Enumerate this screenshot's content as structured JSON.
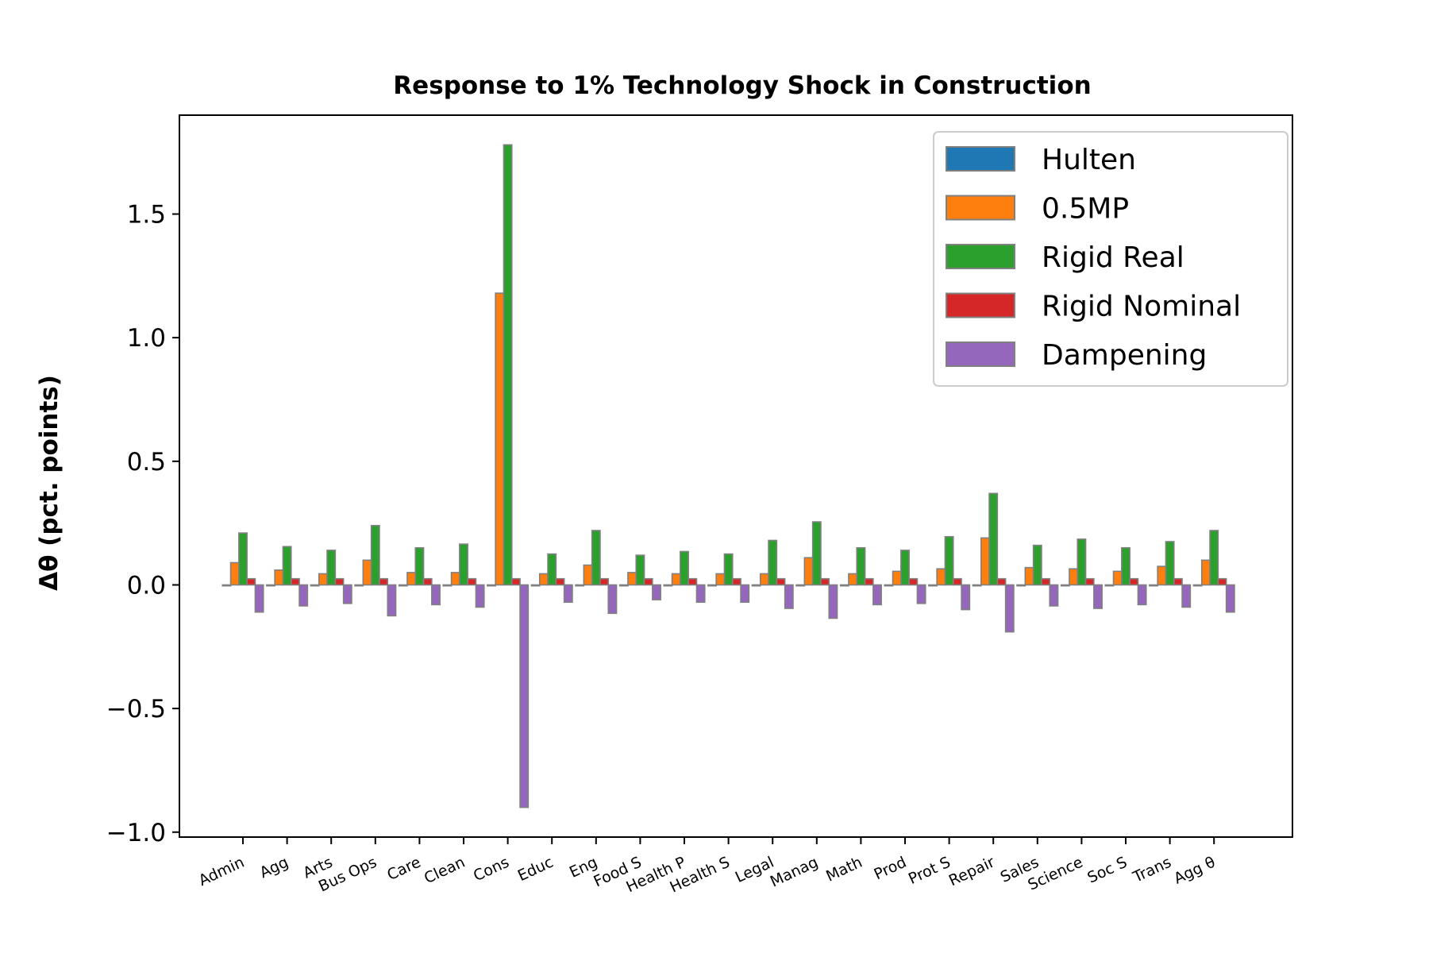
{
  "chart_data": {
    "type": "bar",
    "title": "Response to 1% Technology Shock in Construction",
    "xlabel": "",
    "ylabel": "Δθ  (pct. points)",
    "ylim": [
      -1.02,
      1.9
    ],
    "yticks": [
      -1.0,
      -0.5,
      0.0,
      0.5,
      1.0,
      1.5
    ],
    "ytick_labels": [
      "−1.0",
      "−0.5",
      "0.0",
      "0.5",
      "1.0",
      "1.5"
    ],
    "grid": false,
    "legend_position": "top-right",
    "categories": [
      "Admin",
      "Agg",
      "Arts",
      "Bus Ops",
      "Care",
      "Clean",
      "Cons",
      "Educ",
      "Eng",
      "Food S",
      "Health P",
      "Health S",
      "Legal",
      "Manag",
      "Math",
      "Prod",
      "Prot S",
      "Repair",
      "Sales",
      "Science",
      "Soc S",
      "Trans",
      "Agg θ"
    ],
    "series": [
      {
        "name": "Hulten",
        "color": "#1f77b4",
        "values": [
          0,
          0,
          0,
          0,
          0,
          0,
          0,
          0,
          0,
          0,
          0,
          0,
          0,
          0,
          0,
          0,
          0,
          0,
          0,
          0,
          0,
          0,
          0
        ]
      },
      {
        "name": "0.5MP",
        "color": "#ff7f0e",
        "values": [
          0.09,
          0.06,
          0.045,
          0.1,
          0.05,
          0.05,
          1.18,
          0.045,
          0.08,
          0.05,
          0.045,
          0.045,
          0.045,
          0.11,
          0.045,
          0.055,
          0.065,
          0.19,
          0.07,
          0.065,
          0.055,
          0.075,
          0.1
        ]
      },
      {
        "name": "Rigid Real",
        "color": "#2ca02c",
        "values": [
          0.21,
          0.155,
          0.14,
          0.24,
          0.15,
          0.165,
          1.78,
          0.125,
          0.22,
          0.12,
          0.135,
          0.125,
          0.18,
          0.255,
          0.15,
          0.14,
          0.195,
          0.37,
          0.16,
          0.185,
          0.15,
          0.175,
          0.22
        ]
      },
      {
        "name": "Rigid Nominal",
        "color": "#d62728",
        "values": [
          0.025,
          0.025,
          0.025,
          0.025,
          0.025,
          0.025,
          0.025,
          0.025,
          0.025,
          0.025,
          0.025,
          0.025,
          0.025,
          0.025,
          0.025,
          0.025,
          0.025,
          0.025,
          0.025,
          0.025,
          0.025,
          0.025,
          0.025
        ]
      },
      {
        "name": "Dampening",
        "color": "#9467bd",
        "values": [
          -0.11,
          -0.085,
          -0.075,
          -0.125,
          -0.08,
          -0.09,
          -0.9,
          -0.07,
          -0.115,
          -0.06,
          -0.07,
          -0.07,
          -0.095,
          -0.135,
          -0.08,
          -0.075,
          -0.1,
          -0.19,
          -0.085,
          -0.095,
          -0.08,
          -0.09,
          -0.11
        ]
      }
    ]
  }
}
